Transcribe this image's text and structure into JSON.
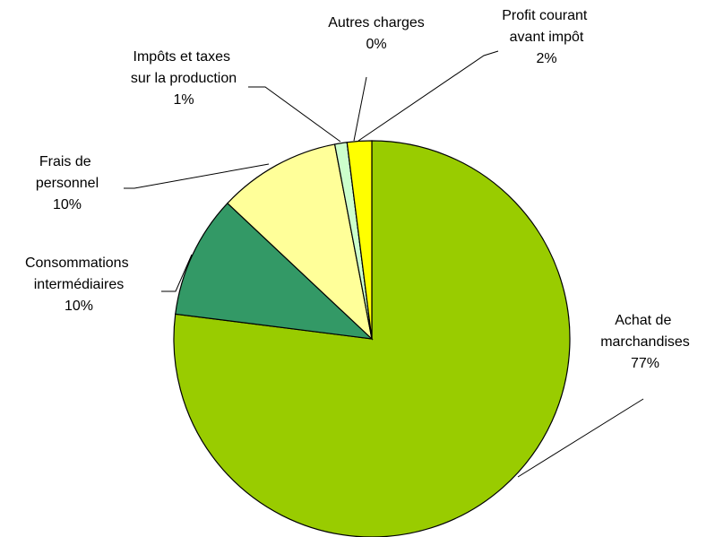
{
  "chart_data": {
    "type": "pie",
    "categories": [
      "Achat de marchandises",
      "Consommations intermédiaires",
      "Frais de personnel",
      "Impôts et taxes sur la production",
      "Autres charges",
      "Profit courant avant impôt"
    ],
    "values": [
      77,
      10,
      10,
      1,
      0,
      2
    ],
    "value_labels": [
      "77%",
      "10%",
      "10%",
      "1%",
      "0%",
      "2%"
    ],
    "colors": [
      "#99cc00",
      "#339966",
      "#ffff99",
      "#ccffcc",
      "#ffffff",
      "#ffff00"
    ]
  }
}
